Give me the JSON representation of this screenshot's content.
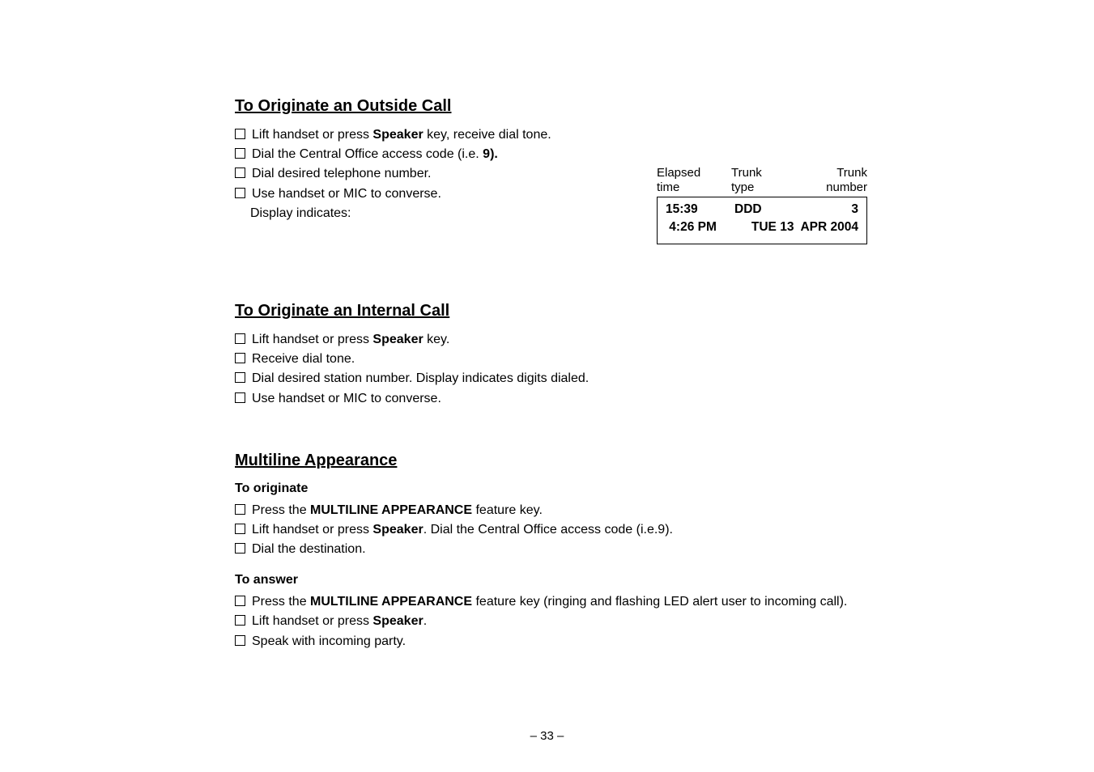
{
  "sections": {
    "outside": {
      "heading": "To Originate an Outside Call",
      "items": [
        {
          "checkbox": true,
          "html": "Lift handset or press <b>Speaker</b> key, receive dial tone."
        },
        {
          "checkbox": true,
          "html": "Dial the Central Office access code (i.e. <b>9).</b>"
        },
        {
          "checkbox": true,
          "html": "Dial desired telephone number."
        },
        {
          "checkbox": true,
          "html": "Use handset or MIC to converse."
        },
        {
          "checkbox": false,
          "html": "Display indicates:"
        }
      ]
    },
    "internal": {
      "heading": "To Originate an Internal Call",
      "items": [
        {
          "checkbox": true,
          "html": "Lift handset or press <b>Speaker</b> key."
        },
        {
          "checkbox": true,
          "html": "Receive dial tone."
        },
        {
          "checkbox": true,
          "html": "Dial desired station number. Display indicates digits dialed."
        },
        {
          "checkbox": true,
          "html": "Use handset or MIC to converse."
        }
      ]
    },
    "multiline": {
      "heading": "Multiline Appearance",
      "sub_originate": "To originate",
      "originate_items": [
        {
          "checkbox": true,
          "html": "Press the <b>MULTILINE APPEARANCE</b> feature key."
        },
        {
          "checkbox": true,
          "html": "Lift handset or press <b>Speaker</b>. Dial the Central Office access code (i.e.9)."
        },
        {
          "checkbox": true,
          "html": "Dial the destination."
        }
      ],
      "sub_answer": "To answer",
      "answer_items": [
        {
          "checkbox": true,
          "html": "Press the <b>MULTILINE APPEARANCE</b> feature key (ringing and flashing LED alert user to incoming call)."
        },
        {
          "checkbox": true,
          "html": "Lift handset or press <b>Speaker</b>."
        },
        {
          "checkbox": true,
          "html": "Speak with incoming party."
        }
      ]
    }
  },
  "display": {
    "labels": {
      "elapsed1": "Elapsed",
      "elapsed2": "time",
      "trunk1": "Trunk",
      "trunk2": "type",
      "num1": "Trunk",
      "num2": "number"
    },
    "line1": {
      "c1": "15:39",
      "c2": "DDD",
      "c3": "3"
    },
    "line2": {
      "c1": " 4:26 PM",
      "c2": "",
      "c3": "TUE 13  APR 2004"
    }
  },
  "footer": "– 33 –"
}
